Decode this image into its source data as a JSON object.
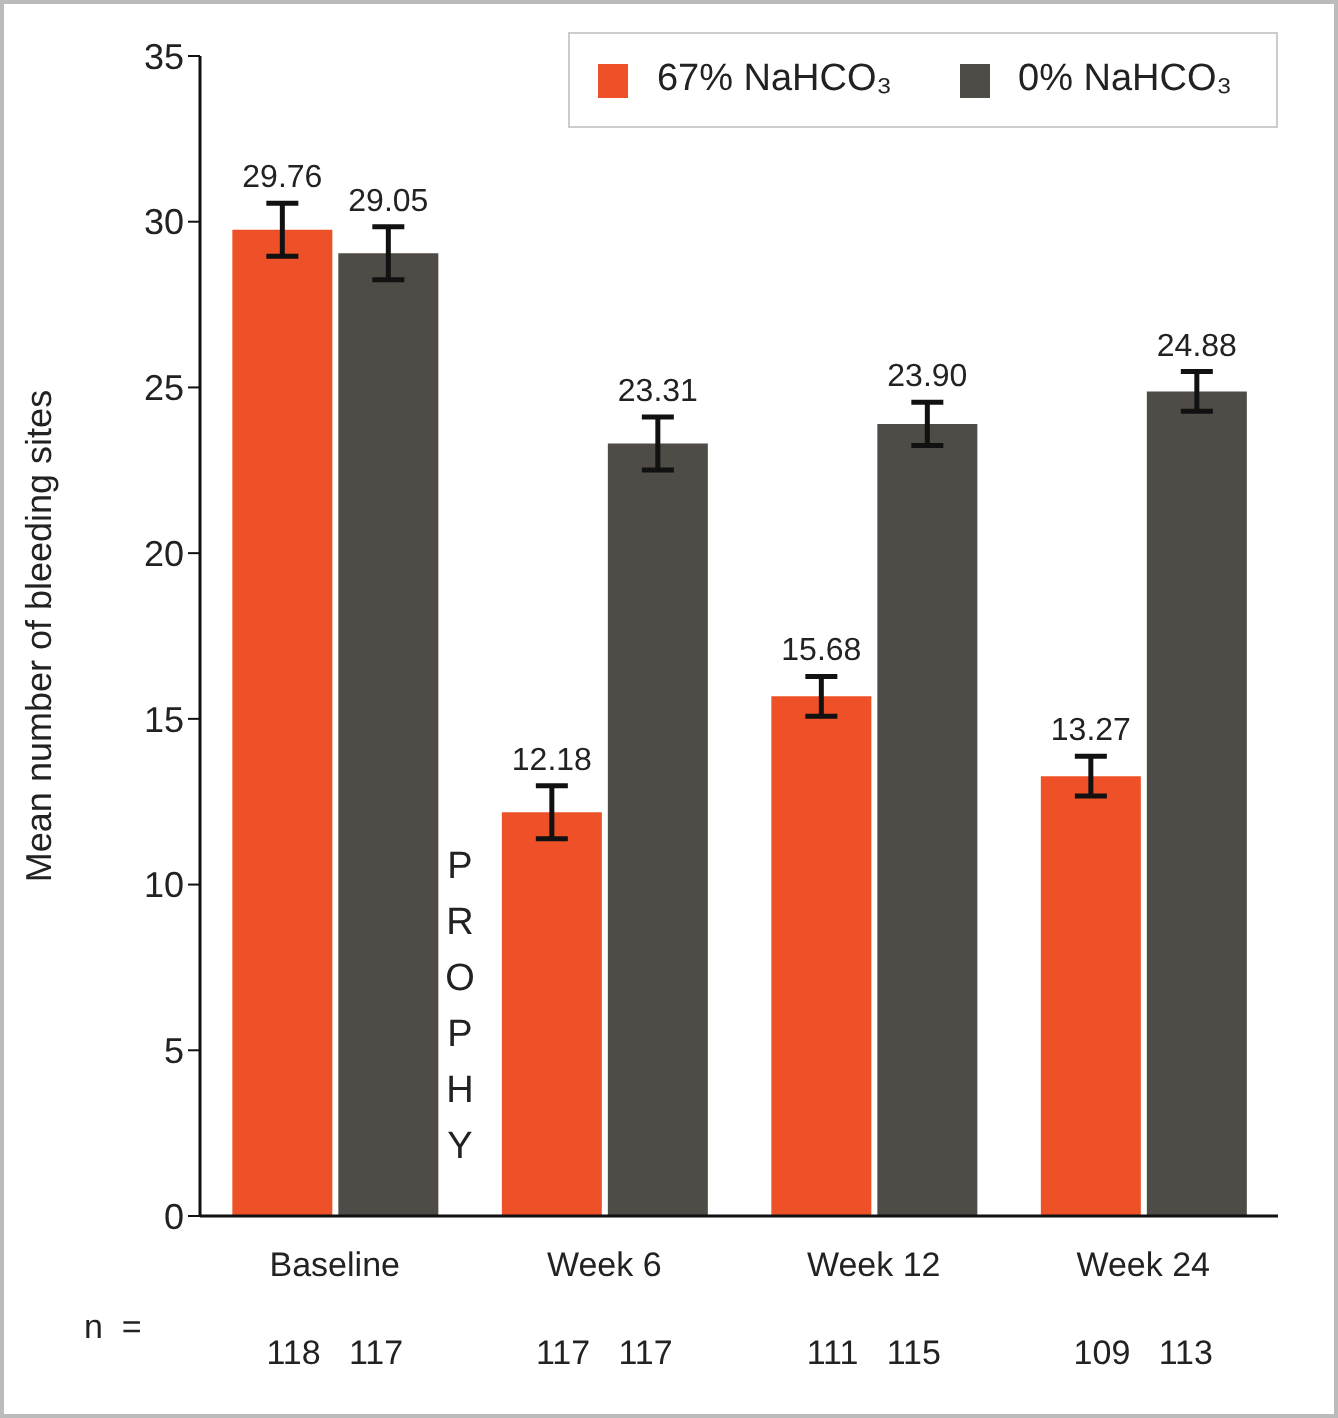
{
  "chart_data": {
    "type": "bar",
    "ylabel": "Mean number of bleeding sites",
    "categories": [
      "Baseline",
      "Week 6",
      "Week 12",
      "Week 24"
    ],
    "series": [
      {
        "name": "67% NaHCO₃",
        "color": "#ee5128",
        "values": [
          29.76,
          12.18,
          15.68,
          13.27
        ],
        "errors": [
          0.8,
          0.8,
          0.6,
          0.6
        ],
        "value_labels": [
          "29.76",
          "12.18",
          "15.68",
          "13.27"
        ]
      },
      {
        "name": "0% NaHCO₃",
        "color": "#4f4b46",
        "values": [
          29.05,
          23.31,
          23.9,
          24.88
        ],
        "errors": [
          0.8,
          0.8,
          0.65,
          0.6
        ],
        "value_labels": [
          "29.05",
          "23.31",
          "23.90",
          "24.88"
        ]
      }
    ],
    "ylim": [
      0,
      35
    ],
    "yticks": [
      0,
      5,
      10,
      15,
      20,
      25,
      30,
      35
    ],
    "grid": false,
    "legend": "top right",
    "annotations": [
      "PROPHY",
      "n =",
      "118   117",
      "117   117",
      "111   115",
      "109   113"
    ]
  }
}
